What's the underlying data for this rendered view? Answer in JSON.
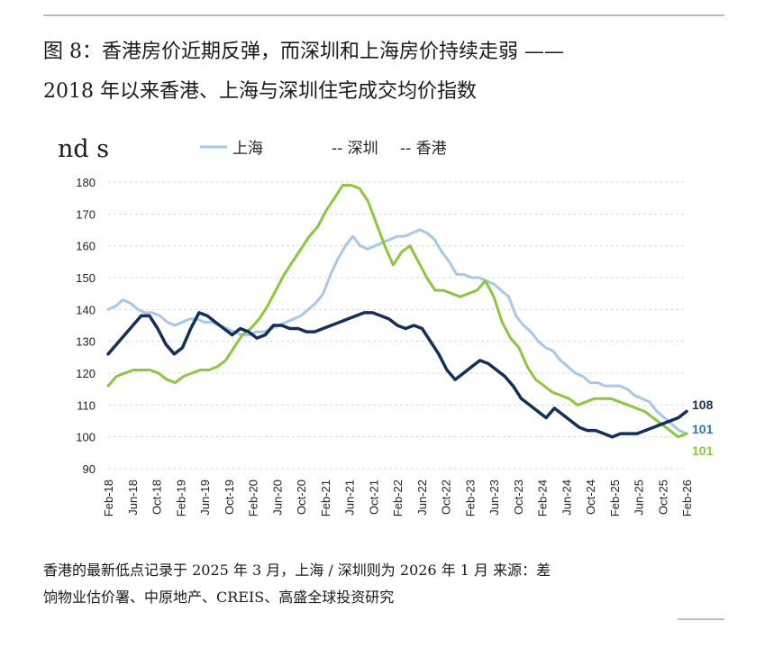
{
  "title": {
    "line1": "图 8：香港房价近期反弹，而深圳和上海房价持续走弱 ——",
    "line2": "2018 年以来香港、上海与深圳住宅成交均价指数"
  },
  "unit_label": "nd s",
  "note": {
    "line1": "香港的最新低点记录于 2025 年 3 月，上海 / 深圳则为 2026 年 1 月 来源：差",
    "line2": "饷物业估价署、中原地产、CREIS、高盛全球投资研究"
  },
  "colors": {
    "shanghai": "#a9c8e8",
    "shenzhen": "#8dc63f",
    "hongkong": "#14305a",
    "grid": "#d9d9d9",
    "label_shanghai": "#2e75b6"
  },
  "chart_data": {
    "type": "line",
    "title": "2018 年以来香港、上海与深圳住宅成交均价指数",
    "ylim": [
      90,
      180
    ],
    "yticks": [
      90,
      100,
      110,
      120,
      130,
      140,
      150,
      160,
      170,
      180
    ],
    "grid": true,
    "legend_position": "top",
    "x_start": "Feb-18",
    "x_end": "Feb-26",
    "x_step_months": 4,
    "xticks": [
      "Feb-18",
      "Jun-18",
      "Oct-18",
      "Feb-19",
      "Jun-19",
      "Oct-19",
      "Feb-20",
      "Jun-20",
      "Oct-20",
      "Feb-21",
      "Jun-21",
      "Oct-21",
      "Feb-22",
      "Jun-22",
      "Oct-22",
      "Feb-23",
      "Jun-23",
      "Oct-23",
      "Feb-24",
      "Jun-24",
      "Oct-24",
      "Feb-25",
      "Jun-25",
      "Oct-25",
      "Feb-26"
    ],
    "series": [
      {
        "name": "上海",
        "key": "shanghai",
        "legend_label": "上海",
        "end_label": "101",
        "values": [
          140,
          141,
          143,
          142,
          140,
          139,
          139,
          138,
          136,
          135,
          136,
          137,
          137,
          136,
          136,
          135,
          134,
          133,
          132,
          132,
          133,
          133,
          134,
          135,
          136,
          137,
          138,
          140,
          142,
          145,
          151,
          156,
          160,
          163,
          160,
          159,
          160,
          161,
          162,
          163,
          163,
          164,
          165,
          164,
          162,
          158,
          155,
          151,
          151,
          150,
          150,
          149,
          148,
          146,
          144,
          138,
          135,
          133,
          130,
          128,
          127,
          124,
          122,
          120,
          119,
          117,
          117,
          116,
          116,
          116,
          115,
          113,
          112,
          111,
          108,
          106,
          104,
          102,
          101
        ]
      },
      {
        "name": "深圳",
        "key": "shenzhen",
        "legend_label": "-- 深圳",
        "end_label": "101",
        "values": [
          116,
          119,
          120,
          121,
          121,
          121,
          120,
          118,
          117,
          119,
          120,
          121,
          121,
          122,
          124,
          128,
          132,
          134,
          137,
          141,
          146,
          151,
          155,
          159,
          163,
          166,
          171,
          175,
          179,
          179,
          178,
          174,
          167,
          160,
          154,
          158,
          160,
          155,
          150,
          146,
          146,
          145,
          144,
          145,
          146,
          149,
          144,
          136,
          131,
          128,
          122,
          118,
          116,
          114,
          113,
          112,
          110,
          111,
          112,
          112,
          112,
          111,
          110,
          109,
          108,
          106,
          104,
          102,
          100,
          101
        ]
      },
      {
        "name": "香港",
        "key": "hongkong",
        "legend_label": "-- 香港",
        "end_label": "108",
        "values": [
          126,
          129,
          132,
          135,
          138,
          138,
          134,
          129,
          126,
          128,
          134,
          139,
          138,
          136,
          134,
          132,
          134,
          133,
          131,
          132,
          135,
          135,
          134,
          134,
          133,
          133,
          134,
          135,
          136,
          137,
          138,
          139,
          139,
          138,
          137,
          135,
          134,
          135,
          134,
          130,
          126,
          121,
          118,
          120,
          122,
          124,
          123,
          121,
          119,
          116,
          112,
          110,
          108,
          106,
          109,
          107,
          105,
          103,
          102,
          102,
          101,
          100,
          101,
          101,
          101,
          102,
          103,
          104,
          105,
          106,
          108
        ]
      }
    ]
  }
}
